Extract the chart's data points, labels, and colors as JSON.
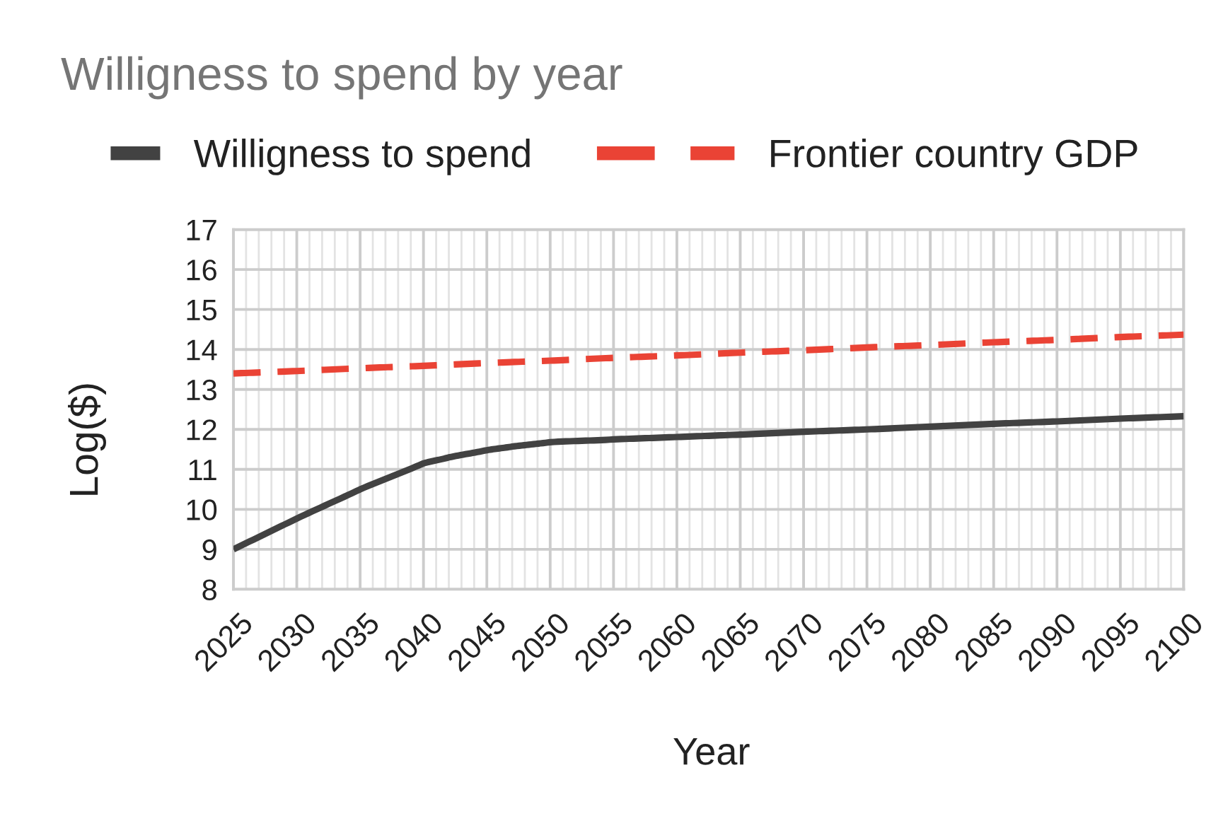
{
  "chart_data": {
    "type": "line",
    "title": "Willigness to spend by year",
    "xlabel": "Year",
    "ylabel": "Log($)",
    "x": [
      2025,
      2030,
      2035,
      2040,
      2045,
      2050,
      2055,
      2060,
      2065,
      2070,
      2075,
      2080,
      2085,
      2090,
      2095,
      2100
    ],
    "series": [
      {
        "name": "Willigness to spend",
        "color": "#424242",
        "line_style": "solid",
        "x": [
          2025,
          2030,
          2035,
          2040,
          2042,
          2045,
          2047,
          2050,
          2055,
          2060,
          2065,
          2070,
          2075,
          2080,
          2085,
          2090,
          2095,
          2100
        ],
        "values": [
          9.0,
          9.77,
          10.5,
          11.15,
          11.3,
          11.48,
          11.57,
          11.68,
          11.75,
          11.81,
          11.87,
          11.94,
          12.0,
          12.07,
          12.14,
          12.2,
          12.27,
          12.33
        ]
      },
      {
        "name": "Frontier country GDP",
        "color": "#ea4335",
        "line_style": "dashed",
        "values": [
          13.4,
          13.46,
          13.53,
          13.59,
          13.66,
          13.72,
          13.79,
          13.85,
          13.92,
          13.98,
          14.05,
          14.11,
          14.18,
          14.24,
          14.31,
          14.37
        ]
      }
    ],
    "xlim": [
      2025,
      2100
    ],
    "xticks": [
      2025,
      {
        "value": 2026,
        "label": null
      },
      {
        "value": 2027,
        "label": null
      },
      {
        "value": 2028,
        "label": null
      },
      {
        "value": 2029,
        "label": null
      },
      2030,
      {
        "value": 2031,
        "label": null
      },
      {
        "value": 2032,
        "label": null
      },
      {
        "value": 2033,
        "label": null
      },
      {
        "value": 2034,
        "label": null
      },
      2035,
      {
        "value": 2036,
        "label": null
      },
      {
        "value": 2037,
        "label": null
      },
      {
        "value": 2038,
        "label": null
      },
      {
        "value": 2039,
        "label": null
      },
      2040,
      {
        "value": 2041,
        "label": null
      },
      {
        "value": 2042,
        "label": null
      },
      {
        "value": 2043,
        "label": null
      },
      {
        "value": 2044,
        "label": null
      },
      2045,
      {
        "value": 2046,
        "label": null
      },
      {
        "value": 2047,
        "label": null
      },
      {
        "value": 2048,
        "label": null
      },
      {
        "value": 2049,
        "label": null
      },
      2050,
      {
        "value": 2051,
        "label": null
      },
      {
        "value": 2052,
        "label": null
      },
      {
        "value": 2053,
        "label": null
      },
      {
        "value": 2054,
        "label": null
      },
      2055,
      {
        "value": 2056,
        "label": null
      },
      {
        "value": 2057,
        "label": null
      },
      {
        "value": 2058,
        "label": null
      },
      {
        "value": 2059,
        "label": null
      },
      2060,
      {
        "value": 2061,
        "label": null
      },
      {
        "value": 2062,
        "label": null
      },
      {
        "value": 2063,
        "label": null
      },
      {
        "value": 2064,
        "label": null
      },
      2065,
      {
        "value": 2066,
        "label": null
      },
      {
        "value": 2067,
        "label": null
      },
      {
        "value": 2068,
        "label": null
      },
      {
        "value": 2069,
        "label": null
      },
      2070,
      {
        "value": 2071,
        "label": null
      },
      {
        "value": 2072,
        "label": null
      },
      {
        "value": 2073,
        "label": null
      },
      {
        "value": 2074,
        "label": null
      },
      2075,
      {
        "value": 2076,
        "label": null
      },
      {
        "value": 2077,
        "label": null
      },
      {
        "value": 2078,
        "label": null
      },
      {
        "value": 2079,
        "label": null
      },
      2080,
      {
        "value": 2081,
        "label": null
      },
      {
        "value": 2082,
        "label": null
      },
      {
        "value": 2083,
        "label": null
      },
      {
        "value": 2084,
        "label": null
      },
      2085,
      {
        "value": 2086,
        "label": null
      },
      {
        "value": 2087,
        "label": null
      },
      {
        "value": 2088,
        "label": null
      },
      {
        "value": 2089,
        "label": null
      },
      2090,
      {
        "value": 2091,
        "label": null
      },
      {
        "value": 2092,
        "label": null
      },
      {
        "value": 2093,
        "label": null
      },
      {
        "value": 2094,
        "label": null
      },
      2095,
      {
        "value": 2096,
        "label": null
      },
      {
        "value": 2097,
        "label": null
      },
      {
        "value": 2098,
        "label": null
      },
      {
        "value": 2099,
        "label": null
      },
      2100
    ],
    "ylim": [
      8,
      17
    ],
    "yticks": [
      8,
      9,
      10,
      11,
      12,
      13,
      14,
      15,
      16,
      17
    ],
    "grid": true,
    "legend": "top"
  }
}
